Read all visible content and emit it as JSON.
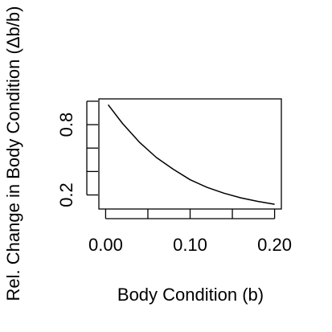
{
  "chart_data": {
    "type": "line",
    "title": "",
    "xlabel": "Body Condition (b)",
    "ylabel": "Rel. Change in Body Condition (Δb/b)",
    "xlim": [
      -0.008,
      0.208
    ],
    "ylim": [
      0.08,
      1.02
    ],
    "x_ticks": [
      0.0,
      0.05,
      0.1,
      0.15,
      0.2
    ],
    "x_tick_labels": [
      "0.00",
      "",
      "0.10",
      "",
      "0.20"
    ],
    "y_ticks": [
      0.2,
      0.4,
      0.6,
      0.8,
      1.0
    ],
    "y_tick_labels": [
      "0.2",
      "",
      "",
      "0.8",
      ""
    ],
    "grid": false,
    "series": [
      {
        "x": [
          0.003,
          0.02,
          0.04,
          0.06,
          0.08,
          0.1,
          0.12,
          0.14,
          0.16,
          0.18,
          0.2
        ],
        "y": [
          0.97,
          0.81,
          0.65,
          0.52,
          0.42,
          0.33,
          0.265,
          0.215,
          0.175,
          0.145,
          0.12
        ],
        "color": "#000000"
      }
    ]
  }
}
